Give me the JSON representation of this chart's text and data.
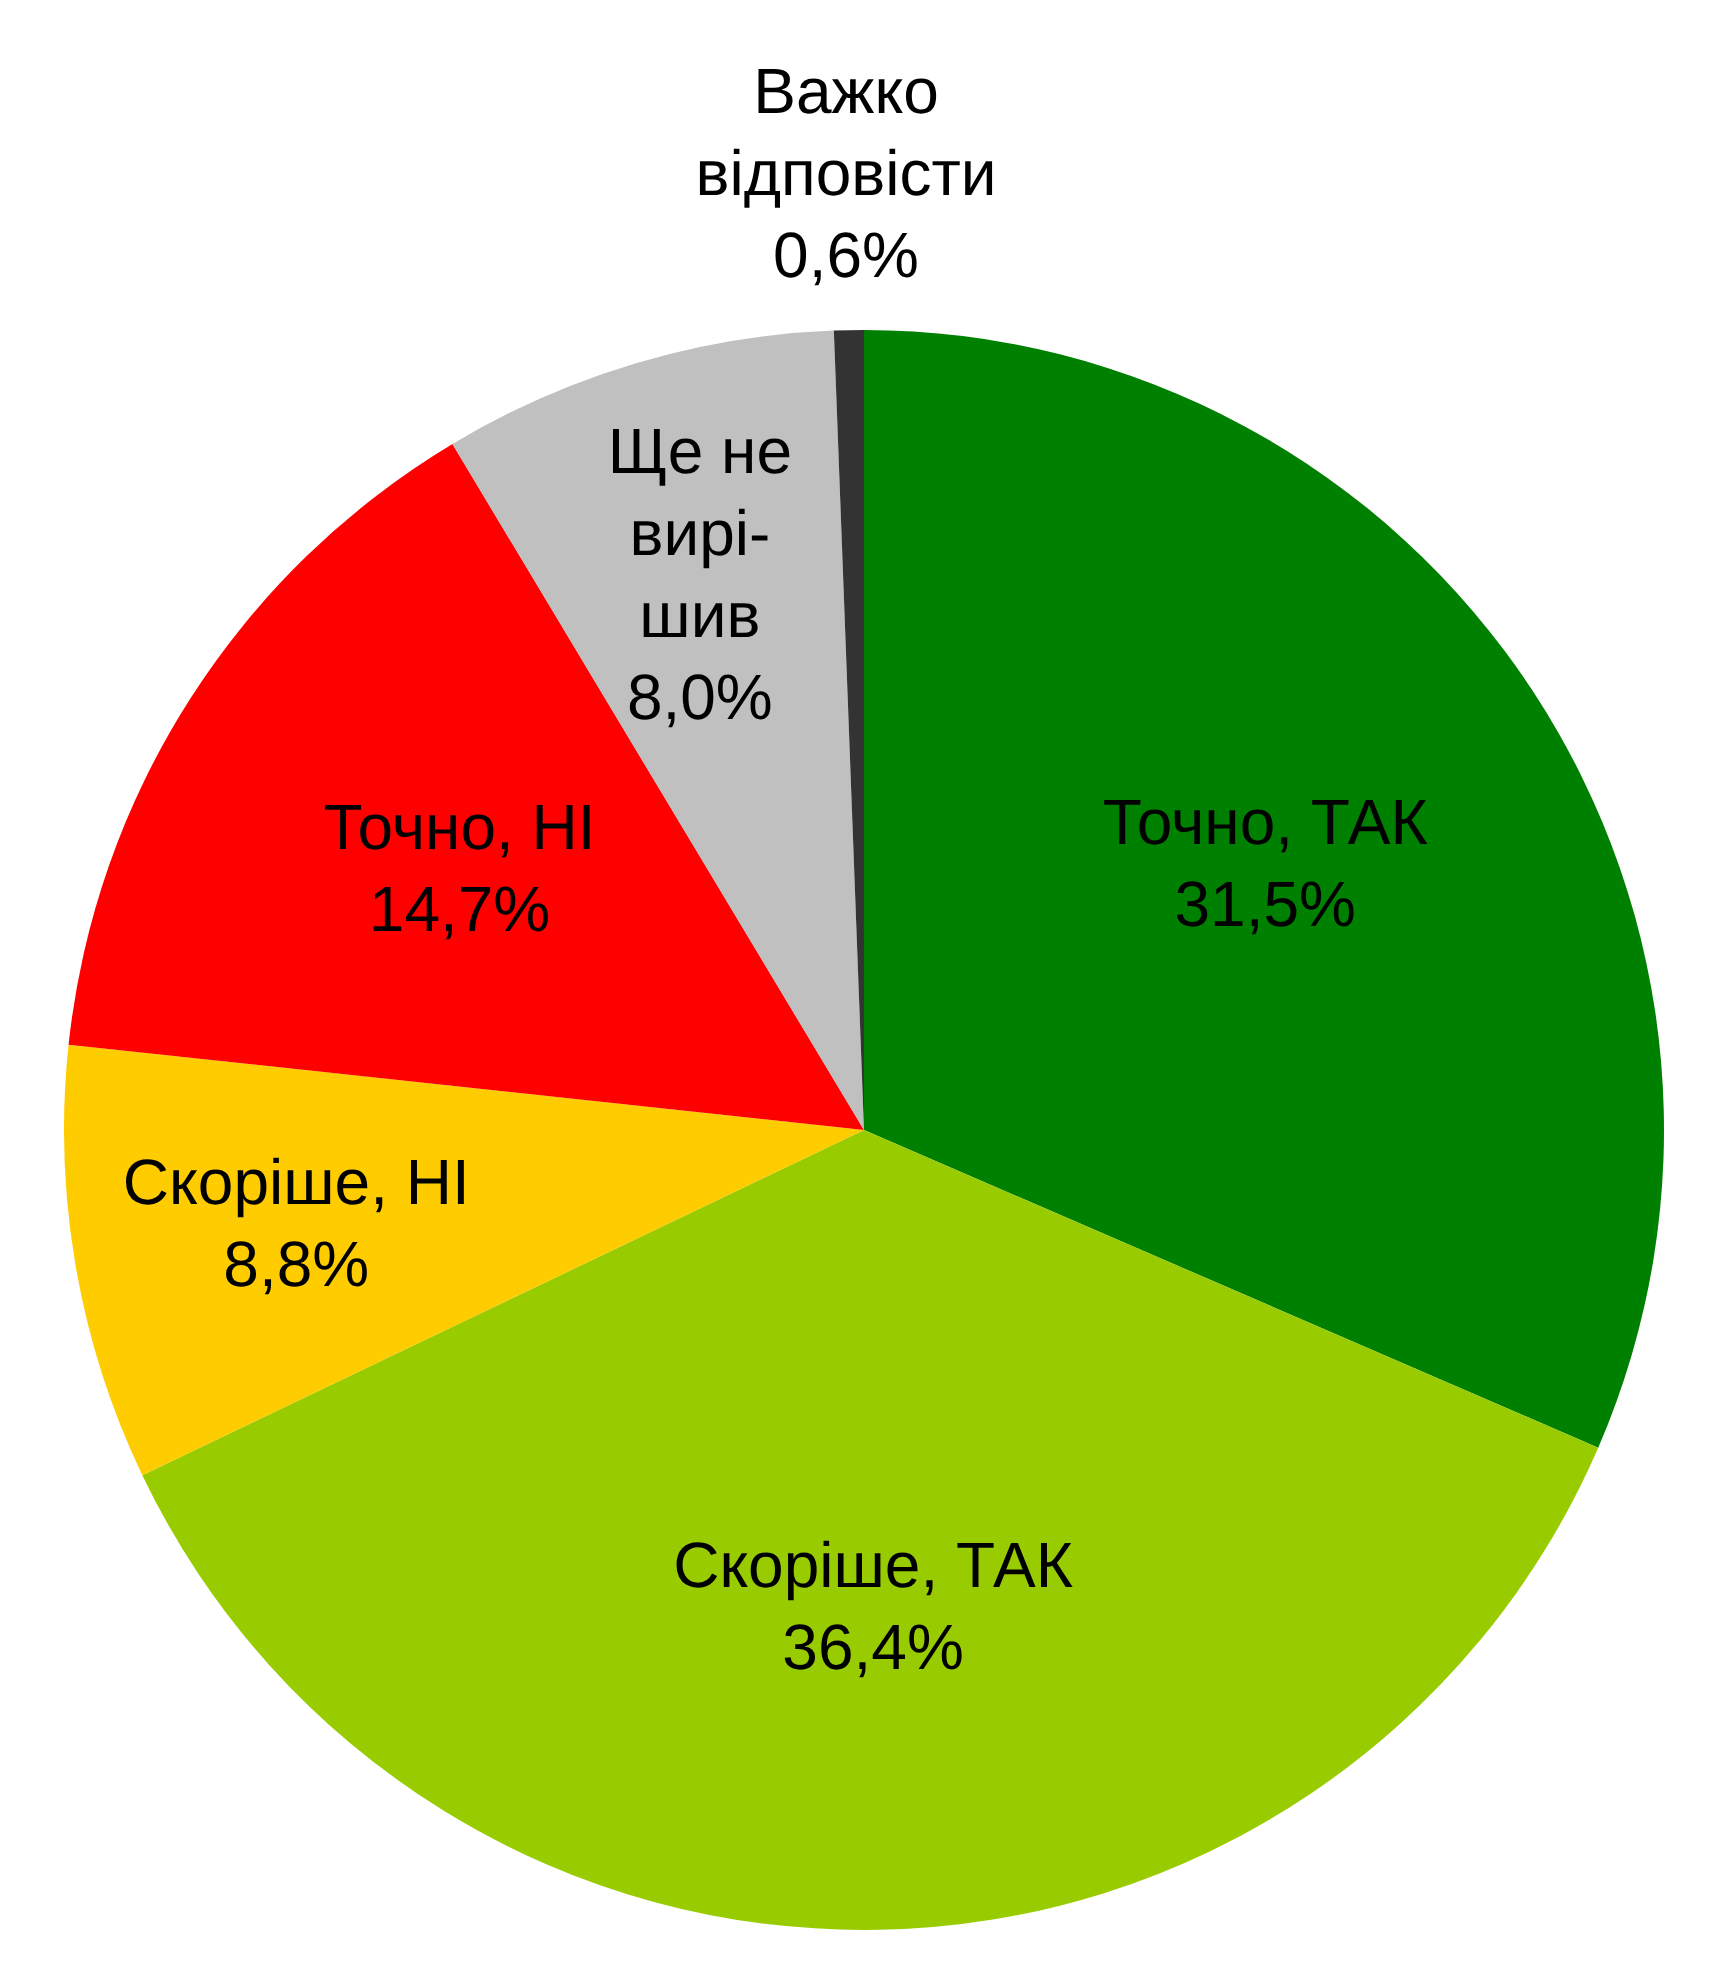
{
  "chart_data": {
    "type": "pie",
    "categories": [
      "Точно, ТАК",
      "Скоріше, ТАК",
      "Скоріше, НІ",
      "Точно, НІ",
      "Ще не\nвирі-\nшив",
      "Важко\nвідповісти"
    ],
    "values": [
      31.5,
      36.4,
      8.8,
      14.7,
      8.0,
      0.6
    ],
    "colors": [
      "#008000",
      "#99cc00",
      "#ffcc00",
      "#ff0000",
      "#c0c0c0",
      "#333333"
    ],
    "value_labels": [
      "31,5%",
      "36,4%",
      "8,8%",
      "14,7%",
      "8,0%",
      "0,6%"
    ]
  }
}
